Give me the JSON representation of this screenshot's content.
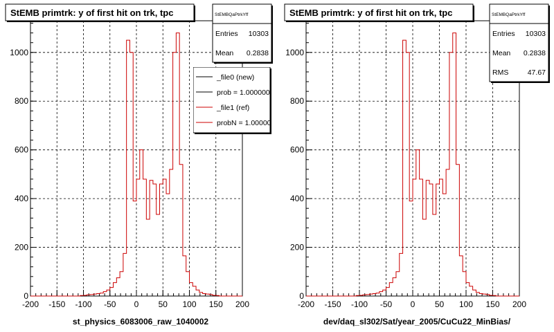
{
  "footer_note": "",
  "line_colors": {
    "new": "#000000",
    "ref": "#cc0000"
  },
  "chart_data": [
    {
      "type": "histogram",
      "title": "StEMB primtrk: y of first hit on trk, tpc",
      "xlabel": "st_physics_6083006_raw_1040002",
      "ylabel": "",
      "xlim": [
        -200,
        200
      ],
      "ylim": [
        0,
        1130
      ],
      "xticks": [
        -200,
        -150,
        -100,
        -50,
        0,
        50,
        100,
        150,
        200
      ],
      "yticks": [
        0,
        200,
        400,
        600,
        800,
        1000
      ],
      "grid": true,
      "stats": {
        "name": "StEMBQaPtrkYff",
        "rows": [
          {
            "label": "Entries",
            "value": "10303"
          },
          {
            "label": "Mean",
            "value": "0.2838"
          }
        ]
      },
      "legend": {
        "entries": [
          {
            "label": "_file0 (new)",
            "color": "#000000"
          },
          {
            "label": "prob = 1.000000",
            "color": "#000000"
          },
          {
            "label": "_file1 (ref)",
            "color": "#cc0000"
          },
          {
            "label": "probN = 1.000000",
            "color": "#cc0000"
          }
        ]
      },
      "series": [
        {
          "name": "_file1 (ref)",
          "color": "#cc0000",
          "bin_width": 6.25,
          "x_start": -200,
          "values": [
            0,
            0,
            0,
            0,
            0,
            0,
            0,
            0,
            0,
            0,
            0,
            0,
            0,
            0,
            0,
            2,
            3,
            5,
            6,
            8,
            10,
            12,
            18,
            25,
            35,
            55,
            75,
            100,
            175,
            1050,
            1000,
            390,
            480,
            600,
            480,
            315,
            475,
            460,
            335,
            460,
            480,
            420,
            520,
            1000,
            1080,
            540,
            165,
            100,
            55,
            40,
            25,
            15,
            10,
            8,
            6,
            3,
            2,
            0,
            0,
            0,
            0,
            0,
            0,
            0
          ]
        }
      ]
    },
    {
      "type": "histogram",
      "title": "StEMB primtrk: y of first hit on trk, tpc",
      "xlabel": "dev/daq_sl302/Sat/year_2005/CuCu22_MinBias/",
      "ylabel": "",
      "xlim": [
        -200,
        200
      ],
      "ylim": [
        0,
        1130
      ],
      "xticks": [
        -200,
        -150,
        -100,
        -50,
        0,
        50,
        100,
        150,
        200
      ],
      "yticks": [
        0,
        200,
        400,
        600,
        800,
        1000
      ],
      "grid": true,
      "stats": {
        "name": "StEMBQaPtrkYff",
        "rows": [
          {
            "label": "Entries",
            "value": "10303"
          },
          {
            "label": "Mean",
            "value": "0.2838"
          },
          {
            "label": "RMS",
            "value": "47.67"
          }
        ]
      },
      "legend": null,
      "series": [
        {
          "name": "",
          "color": "#cc0000",
          "bin_width": 6.25,
          "x_start": -200,
          "values": [
            0,
            0,
            0,
            0,
            0,
            0,
            0,
            0,
            0,
            0,
            0,
            0,
            0,
            0,
            0,
            2,
            3,
            5,
            6,
            8,
            10,
            12,
            18,
            25,
            35,
            55,
            75,
            100,
            175,
            1050,
            1000,
            390,
            480,
            600,
            480,
            315,
            475,
            460,
            335,
            460,
            480,
            420,
            520,
            1000,
            1080,
            540,
            165,
            100,
            55,
            40,
            25,
            15,
            10,
            8,
            6,
            3,
            2,
            0,
            0,
            0,
            0,
            0,
            0,
            0
          ]
        }
      ]
    }
  ]
}
